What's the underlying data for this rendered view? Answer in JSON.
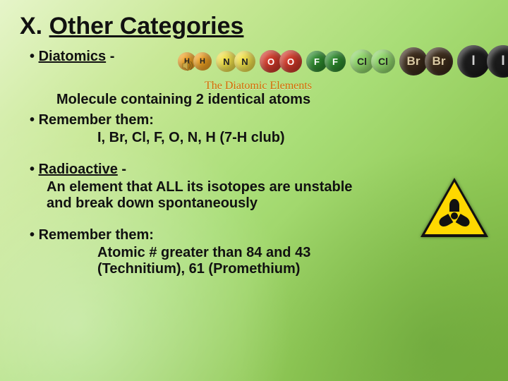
{
  "title": {
    "num": "X.",
    "text": "Other Categories"
  },
  "diatomics": {
    "heading": "Diatomics",
    "dash": " - ",
    "definition": "Molecule containing 2 identical atoms",
    "remember_label": "Remember them:",
    "list": "I, Br, Cl, F, O, N, H (7-H club)",
    "caption": "The Diatomic Elements",
    "atoms": [
      {
        "label": "H",
        "color": "#f6a623",
        "size": 26,
        "text": "#222"
      },
      {
        "label": "H",
        "color": "#f6a623",
        "size": 26,
        "text": "#222"
      },
      {
        "label": "N",
        "color": "#f2e24a",
        "size": 30,
        "text": "#222"
      },
      {
        "label": "N",
        "color": "#f2e24a",
        "size": 30,
        "text": "#222"
      },
      {
        "label": "O",
        "color": "#d13a2a",
        "size": 32,
        "text": "#fff"
      },
      {
        "label": "O",
        "color": "#d13a2a",
        "size": 32,
        "text": "#fff"
      },
      {
        "label": "F",
        "color": "#2e8b2e",
        "size": 30,
        "text": "#fff"
      },
      {
        "label": "F",
        "color": "#2e8b2e",
        "size": 30,
        "text": "#fff"
      },
      {
        "label": "Cl",
        "color": "#8fd66a",
        "size": 34,
        "text": "#222"
      },
      {
        "label": "Cl",
        "color": "#8fd66a",
        "size": 34,
        "text": "#222"
      },
      {
        "label": "Br",
        "color": "#3a2a1a",
        "size": 40,
        "text": "#d9c9a3"
      },
      {
        "label": "Br",
        "color": "#3a2a1a",
        "size": 40,
        "text": "#d9c9a3"
      },
      {
        "label": "I",
        "color": "#1a1a1a",
        "size": 46,
        "text": "#cfcfcf"
      },
      {
        "label": "I",
        "color": "#1a1a1a",
        "size": 46,
        "text": "#cfcfcf"
      }
    ]
  },
  "radioactive": {
    "heading": "Radioactive",
    "dash": " - ",
    "definition": "An element that ALL its isotopes are unstable and break down spontaneously",
    "remember_label": "Remember them:",
    "list": "Atomic # greater than 84 and 43 (Technitium), 61 (Promethium)",
    "sign_colors": {
      "border": "#111111",
      "fill": "#ffd800",
      "symbol": "#111111"
    }
  },
  "icons": {
    "speaker": "speaker-icon"
  }
}
